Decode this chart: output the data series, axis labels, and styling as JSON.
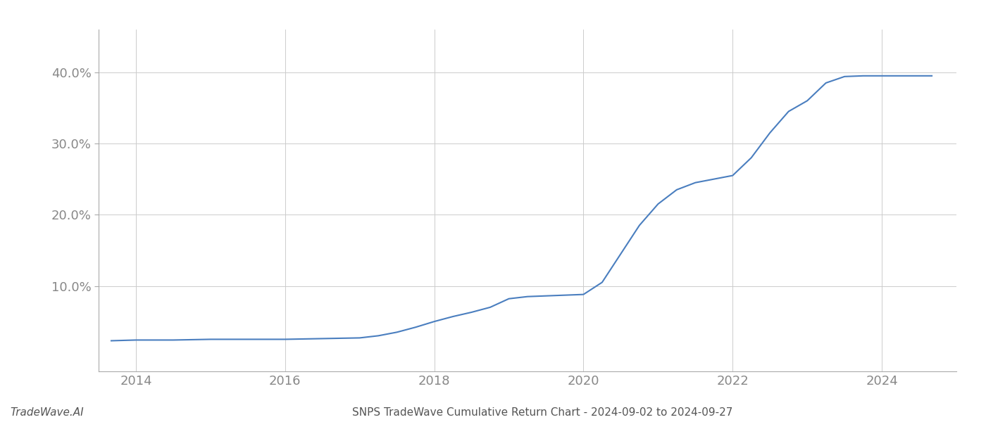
{
  "title": "SNPS TradeWave Cumulative Return Chart - 2024-09-02 to 2024-09-27",
  "watermark": "TradeWave.AI",
  "line_color": "#4a7ebf",
  "background_color": "#ffffff",
  "grid_color": "#cccccc",
  "x_values": [
    2013.67,
    2014.0,
    2014.5,
    2015.0,
    2015.5,
    2016.0,
    2016.5,
    2017.0,
    2017.25,
    2017.5,
    2017.75,
    2018.0,
    2018.25,
    2018.5,
    2018.75,
    2019.0,
    2019.25,
    2019.5,
    2019.75,
    2020.0,
    2020.25,
    2020.5,
    2020.75,
    2021.0,
    2021.25,
    2021.5,
    2021.75,
    2022.0,
    2022.25,
    2022.5,
    2022.75,
    2023.0,
    2023.25,
    2023.5,
    2023.75,
    2024.0,
    2024.25,
    2024.5,
    2024.67
  ],
  "y_values": [
    2.3,
    2.4,
    2.4,
    2.5,
    2.5,
    2.5,
    2.6,
    2.7,
    3.0,
    3.5,
    4.2,
    5.0,
    5.7,
    6.3,
    7.0,
    8.2,
    8.5,
    8.6,
    8.7,
    8.8,
    10.5,
    14.5,
    18.5,
    21.5,
    23.5,
    24.5,
    25.0,
    25.5,
    28.0,
    31.5,
    34.5,
    36.0,
    38.5,
    39.4,
    39.5,
    39.5,
    39.5,
    39.5,
    39.5
  ],
  "xlim": [
    2013.5,
    2025.0
  ],
  "ylim": [
    -2.0,
    46.0
  ],
  "xticks": [
    2014,
    2016,
    2018,
    2020,
    2022,
    2024
  ],
  "yticks": [
    10.0,
    20.0,
    30.0,
    40.0
  ],
  "ytick_labels": [
    "10.0%",
    "20.0%",
    "30.0%",
    "40.0%"
  ],
  "line_width": 1.5,
  "tick_fontsize": 13,
  "title_fontsize": 11,
  "watermark_fontsize": 11
}
